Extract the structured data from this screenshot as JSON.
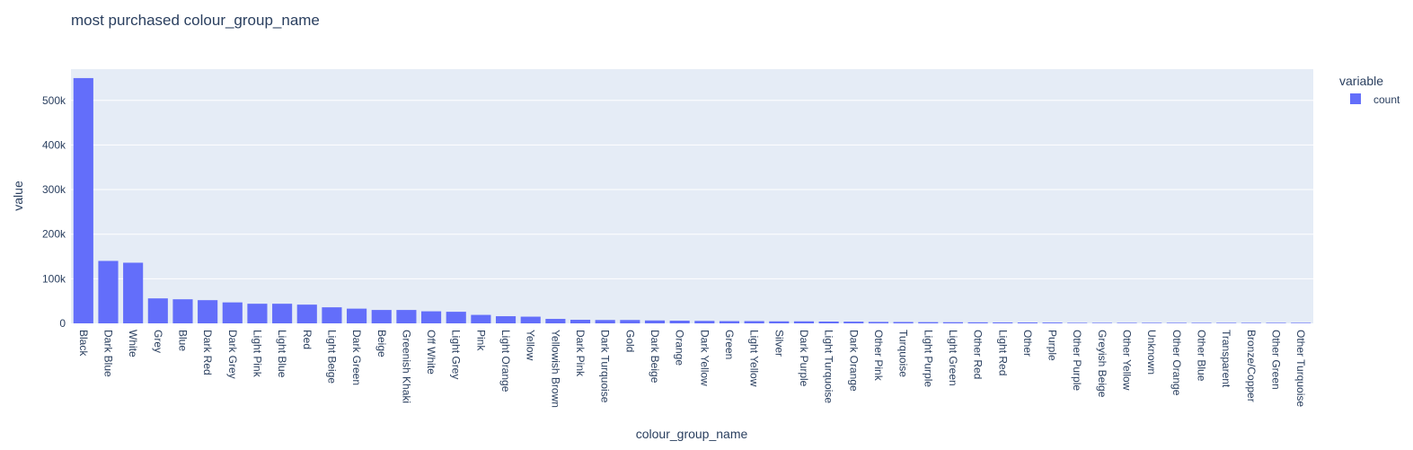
{
  "chart_data": {
    "type": "bar",
    "title": "most purchased colour_group_name",
    "xlabel": "colour_group_name",
    "ylabel": "value",
    "ylim": [
      0,
      570000
    ],
    "yticks": [
      0,
      100000,
      200000,
      300000,
      400000,
      500000
    ],
    "ytick_labels": [
      "0",
      "100k",
      "200k",
      "300k",
      "400k",
      "500k"
    ],
    "grid": true,
    "legend": {
      "title": "variable",
      "placement": "top-right"
    },
    "colors": {
      "bar": "#636efa",
      "plot_bg": "#e5ecf6",
      "grid": "#ffffff",
      "text": "#2a3f5f"
    },
    "categories": [
      "Black",
      "Dark Blue",
      "White",
      "Grey",
      "Blue",
      "Dark Red",
      "Dark Grey",
      "Light Pink",
      "Light Blue",
      "Red",
      "Light Beige",
      "Dark Green",
      "Beige",
      "Greenish Khaki",
      "Off White",
      "Light Grey",
      "Pink",
      "Light Orange",
      "Yellow",
      "Yellowish Brown",
      "Dark Pink",
      "Dark Turquoise",
      "Gold",
      "Dark Beige",
      "Orange",
      "Dark Yellow",
      "Green",
      "Light Yellow",
      "Silver",
      "Dark Purple",
      "Light Turquoise",
      "Dark Orange",
      "Other Pink",
      "Turquoise",
      "Light Purple",
      "Light Green",
      "Other Red",
      "Light Red",
      "Other",
      "Purple",
      "Other Purple",
      "Greyish Beige",
      "Other Yellow",
      "Unknown",
      "Other Orange",
      "Other Blue",
      "Transparent",
      "Bronze/Copper",
      "Other Green",
      "Other Turquoise"
    ],
    "series": [
      {
        "name": "count",
        "values": [
          550000,
          140000,
          136000,
          56000,
          54000,
          52000,
          47000,
          44000,
          44000,
          42000,
          36000,
          33000,
          30000,
          30000,
          27000,
          26000,
          19000,
          16000,
          15000,
          10000,
          8000,
          7500,
          7500,
          6500,
          6000,
          5500,
          5000,
          5000,
          4500,
          4500,
          4000,
          3800,
          3200,
          3000,
          2700,
          2500,
          2300,
          2100,
          2000,
          1800,
          1000,
          900,
          800,
          700,
          600,
          500,
          400,
          350,
          300,
          250
        ]
      }
    ]
  }
}
